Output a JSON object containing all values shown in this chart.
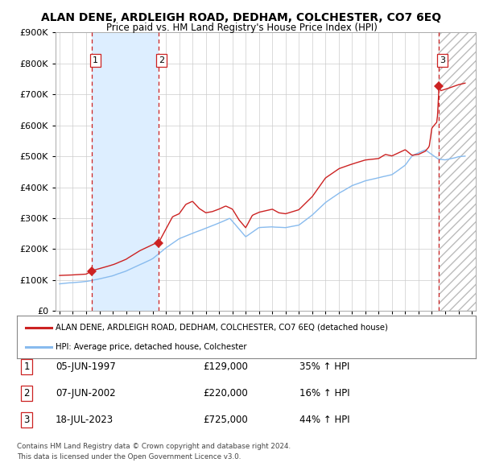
{
  "title": "ALAN DENE, ARDLEIGH ROAD, DEDHAM, COLCHESTER, CO7 6EQ",
  "subtitle": "Price paid vs. HM Land Registry's House Price Index (HPI)",
  "legend_line1": "ALAN DENE, ARDLEIGH ROAD, DEDHAM, COLCHESTER, CO7 6EQ (detached house)",
  "legend_line2": "HPI: Average price, detached house, Colchester",
  "footer1": "Contains HM Land Registry data © Crown copyright and database right 2024.",
  "footer2": "This data is licensed under the Open Government Licence v3.0.",
  "sales": [
    {
      "num": 1,
      "date": "05-JUN-1997",
      "price": 129000,
      "pct": "35%",
      "dir": "↑",
      "x_year": 1997.43
    },
    {
      "num": 2,
      "date": "07-JUN-2002",
      "price": 220000,
      "pct": "16%",
      "dir": "↑",
      "x_year": 2002.43
    },
    {
      "num": 3,
      "date": "18-JUL-2023",
      "price": 725000,
      "pct": "44%",
      "dir": "↑",
      "x_year": 2023.54
    }
  ],
  "ylim": [
    0,
    900000
  ],
  "xlim_start": 1994.7,
  "xlim_end": 2026.3,
  "hpi_color": "#88BBEE",
  "price_color": "#CC2222",
  "vline_color": "#CC2222",
  "shade_color": "#DDEEFF",
  "hatch_color": "#CCCCCC",
  "grid_color": "#CCCCCC",
  "bg_color": "#FFFFFF",
  "plot_bg_color": "#FFFFFF",
  "hpi_anchors": [
    [
      1995.0,
      88000
    ],
    [
      1996.0,
      92000
    ],
    [
      1997.0,
      96000
    ],
    [
      1998.0,
      105000
    ],
    [
      1999.0,
      115000
    ],
    [
      2000.0,
      130000
    ],
    [
      2001.0,
      150000
    ],
    [
      2002.0,
      170000
    ],
    [
      2003.0,
      205000
    ],
    [
      2004.0,
      235000
    ],
    [
      2005.0,
      252000
    ],
    [
      2006.0,
      268000
    ],
    [
      2007.0,
      285000
    ],
    [
      2007.8,
      300000
    ],
    [
      2008.5,
      265000
    ],
    [
      2009.0,
      240000
    ],
    [
      2009.5,
      255000
    ],
    [
      2010.0,
      270000
    ],
    [
      2011.0,
      272000
    ],
    [
      2012.0,
      270000
    ],
    [
      2013.0,
      278000
    ],
    [
      2014.0,
      310000
    ],
    [
      2015.0,
      350000
    ],
    [
      2016.0,
      380000
    ],
    [
      2017.0,
      405000
    ],
    [
      2018.0,
      420000
    ],
    [
      2019.0,
      430000
    ],
    [
      2020.0,
      440000
    ],
    [
      2021.0,
      470000
    ],
    [
      2021.5,
      500000
    ],
    [
      2022.0,
      510000
    ],
    [
      2022.5,
      520000
    ],
    [
      2023.0,
      505000
    ],
    [
      2023.5,
      490000
    ],
    [
      2024.0,
      488000
    ],
    [
      2024.5,
      492000
    ],
    [
      2025.0,
      498000
    ],
    [
      2025.5,
      500000
    ]
  ],
  "price_anchors": [
    [
      1995.0,
      115000
    ],
    [
      1996.0,
      117000
    ],
    [
      1997.0,
      120000
    ],
    [
      1997.5,
      132000
    ],
    [
      1998.0,
      138000
    ],
    [
      1999.0,
      150000
    ],
    [
      2000.0,
      168000
    ],
    [
      2001.0,
      195000
    ],
    [
      2002.0,
      215000
    ],
    [
      2002.5,
      225000
    ],
    [
      2003.0,
      265000
    ],
    [
      2003.5,
      305000
    ],
    [
      2004.0,
      315000
    ],
    [
      2004.5,
      345000
    ],
    [
      2005.0,
      355000
    ],
    [
      2005.5,
      332000
    ],
    [
      2006.0,
      318000
    ],
    [
      2006.5,
      322000
    ],
    [
      2007.0,
      330000
    ],
    [
      2007.5,
      340000
    ],
    [
      2008.0,
      330000
    ],
    [
      2008.5,
      295000
    ],
    [
      2009.0,
      270000
    ],
    [
      2009.5,
      310000
    ],
    [
      2010.0,
      320000
    ],
    [
      2011.0,
      330000
    ],
    [
      2011.5,
      318000
    ],
    [
      2012.0,
      315000
    ],
    [
      2013.0,
      328000
    ],
    [
      2014.0,
      370000
    ],
    [
      2015.0,
      430000
    ],
    [
      2016.0,
      460000
    ],
    [
      2017.0,
      475000
    ],
    [
      2018.0,
      488000
    ],
    [
      2019.0,
      492000
    ],
    [
      2019.5,
      505000
    ],
    [
      2020.0,
      500000
    ],
    [
      2020.5,
      510000
    ],
    [
      2021.0,
      520000
    ],
    [
      2021.5,
      502000
    ],
    [
      2022.0,
      505000
    ],
    [
      2022.5,
      515000
    ],
    [
      2022.8,
      530000
    ],
    [
      2023.0,
      590000
    ],
    [
      2023.4,
      610000
    ],
    [
      2023.54,
      728000
    ],
    [
      2023.65,
      710000
    ],
    [
      2024.0,
      715000
    ],
    [
      2024.5,
      722000
    ],
    [
      2025.0,
      730000
    ],
    [
      2025.5,
      735000
    ]
  ]
}
